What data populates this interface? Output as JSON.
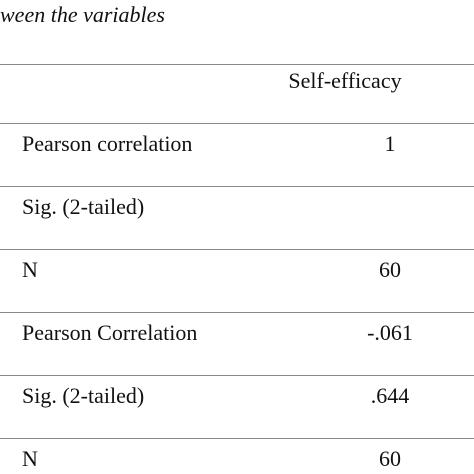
{
  "header": {
    "title": "ween the variables"
  },
  "table": {
    "columns": [
      "Self-efficacy"
    ],
    "rows": [
      [
        "Pearson correlation",
        "1"
      ],
      [
        "Sig. (2-tailed)"
      ],
      [
        "N",
        "60"
      ],
      [
        "Pearson Correlation",
        "-.061"
      ],
      [
        "Sig. (2-tailed)",
        ".644"
      ],
      [
        "N",
        "60"
      ]
    ]
  }
}
